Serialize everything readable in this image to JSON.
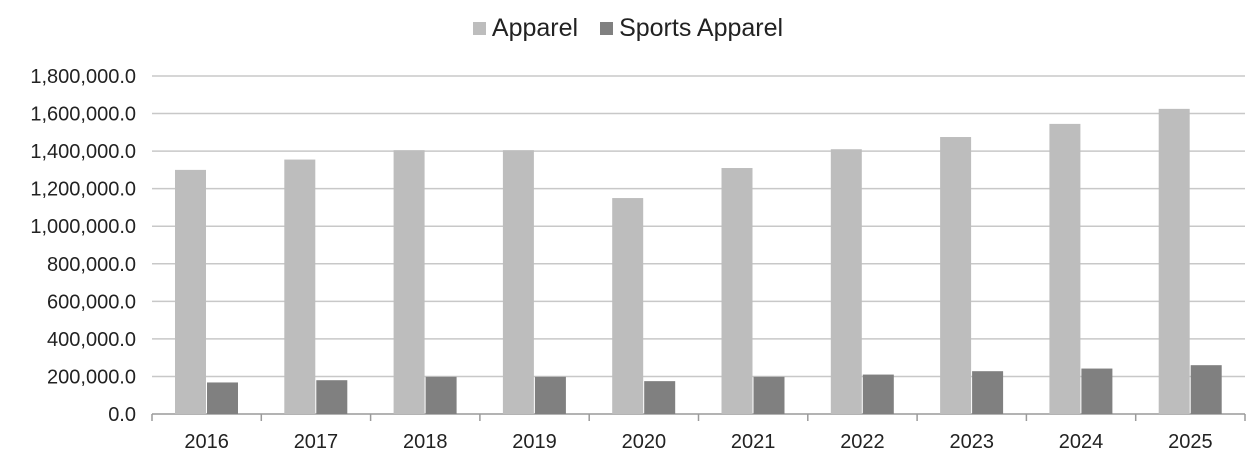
{
  "chart_data": {
    "type": "bar",
    "categories": [
      "2016",
      "2017",
      "2018",
      "2019",
      "2020",
      "2021",
      "2022",
      "2023",
      "2024",
      "2025"
    ],
    "series": [
      {
        "name": "Apparel",
        "color": "#bdbdbd",
        "values": [
          1300000,
          1355000,
          1405000,
          1405000,
          1150000,
          1310000,
          1410000,
          1475000,
          1545000,
          1625000
        ]
      },
      {
        "name": "Sports Apparel",
        "color": "#808080",
        "values": [
          168000,
          180000,
          198000,
          198000,
          175000,
          198000,
          210000,
          228000,
          242000,
          260000
        ]
      }
    ],
    "ylim": [
      0,
      1800000
    ],
    "yticks": [
      "0.0",
      "200,000.0",
      "400,000.0",
      "600,000.0",
      "800,000.0",
      "1,000,000.0",
      "1,200,000.0",
      "1,400,000.0",
      "1,600,000.0",
      "1,800,000.0"
    ],
    "grid": true,
    "legend_position": "top-center"
  }
}
